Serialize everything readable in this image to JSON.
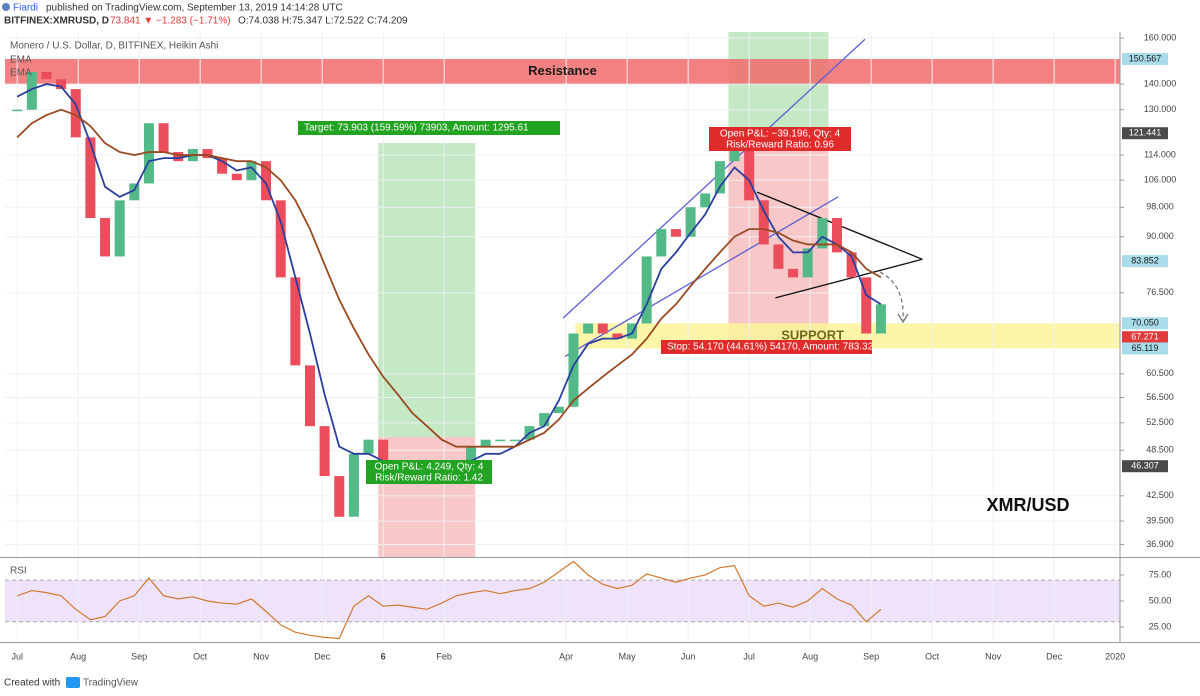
{
  "header": {
    "author": "Fiardi",
    "published": "published on TradingView.com, September 13, 2019 14:14:28 UTC",
    "symbol": "BITFINEX:XMRUSD, D",
    "change": "73.841 ▼ −1.283 (−1.71%)",
    "ohlc": "O:74.038 H:75.347 L:72.522 C:74.209"
  },
  "footer": {
    "created": "Created with",
    "brand": "TradingView"
  },
  "chart_data": {
    "type": "candlestick",
    "subtitle": "Monero / U.S. Dollar, D, BITFINEX, Heikin Ashi",
    "watermark": "XMR/USD",
    "log": true,
    "grid": true,
    "xlim": [
      -0.2,
      18.08
    ],
    "xticks": [
      {
        "value": 0,
        "label": "Jul"
      },
      {
        "value": 1,
        "label": "Aug"
      },
      {
        "value": 2,
        "label": "Sep"
      },
      {
        "value": 3,
        "label": "Oct"
      },
      {
        "value": 4,
        "label": "Nov"
      },
      {
        "value": 5,
        "label": "Dec"
      },
      6,
      {
        "value": 7,
        "label": "Feb"
      },
      {
        "value": 9,
        "label": "Apr"
      },
      {
        "value": 10,
        "label": "May"
      },
      {
        "value": 11,
        "label": "Jun"
      },
      {
        "value": 12,
        "label": "Jul"
      },
      {
        "value": 13,
        "label": "Aug"
      },
      {
        "value": 14,
        "label": "Sep"
      },
      {
        "value": 15,
        "label": "Oct"
      },
      {
        "value": 16,
        "label": "Nov"
      },
      {
        "value": 17,
        "label": "Dec"
      },
      {
        "value": 18,
        "label": "2020"
      }
    ],
    "ylim": [
      35.6,
      162.8
    ],
    "yticks": [
      {
        "value": 160,
        "label": "160.000"
      },
      {
        "value": 140,
        "label": "140.000"
      },
      {
        "value": 130,
        "label": "130.000"
      },
      {
        "value": 114,
        "label": "114.000"
      },
      {
        "value": 106,
        "label": "106.000"
      },
      {
        "value": 98,
        "label": "98.000"
      },
      {
        "value": 90,
        "label": "90.000"
      },
      {
        "value": 76.5,
        "label": "76.500"
      },
      {
        "value": 60.5,
        "label": "60.500"
      },
      {
        "value": 56.5,
        "label": "56.500"
      },
      {
        "value": 52.5,
        "label": "52.500"
      },
      {
        "value": 48.5,
        "label": "48.500"
      },
      {
        "value": 42.5,
        "label": "42.500"
      },
      {
        "value": 39.5,
        "label": "39.500"
      },
      {
        "value": 36.9,
        "label": "36.900"
      }
    ],
    "up_color": "#53b987",
    "down_color": "#eb4d5c",
    "x": [
      0,
      0.24,
      0.48,
      0.72,
      0.96,
      1.2,
      1.44,
      1.68,
      1.92,
      2.16,
      2.4,
      2.64,
      2.88,
      3.12,
      3.36,
      3.6,
      3.84,
      4.08,
      4.32,
      4.56,
      4.8,
      5.04,
      5.28,
      5.52,
      5.76,
      6,
      6.24,
      6.48,
      6.72,
      6.96,
      7.2,
      7.44,
      7.68,
      7.92,
      8.16,
      8.4,
      8.64,
      8.88,
      9.12,
      9.36,
      9.6,
      9.84,
      10.08,
      10.32,
      10.56,
      10.8,
      11.04,
      11.28,
      11.52,
      11.76,
      12,
      12.24,
      12.48,
      12.72,
      12.96,
      13.2,
      13.44,
      13.68,
      13.92,
      14.16
    ],
    "values": [
      130,
      145,
      142,
      138,
      120,
      95,
      85,
      100,
      105,
      125,
      115,
      112,
      116,
      113,
      108,
      106,
      112,
      100,
      80,
      62,
      52,
      45,
      40,
      48,
      50,
      47,
      46,
      45,
      44,
      46,
      47,
      49,
      50,
      50,
      50,
      52,
      54,
      55,
      68,
      70,
      68,
      67,
      70,
      85,
      92,
      90,
      98,
      102,
      112,
      116,
      100,
      88,
      82,
      80,
      87,
      95,
      86,
      80,
      68,
      74
    ],
    "series": [
      {
        "name": "EMA",
        "color": "#2b3f9e",
        "values": [
          135,
          138,
          140,
          139,
          132,
          118,
          104,
          101,
          103,
          112,
          113,
          113,
          114,
          114,
          112,
          109,
          110,
          105,
          94,
          80,
          68,
          57,
          49,
          48,
          48,
          47,
          46,
          46,
          45,
          45,
          46,
          47,
          48,
          48,
          49,
          51,
          52,
          56,
          62,
          66,
          67,
          67,
          68,
          74,
          82,
          86,
          91,
          96,
          104,
          110,
          106,
          97,
          90,
          86,
          86,
          90,
          88,
          85,
          76,
          74
        ]
      },
      {
        "name": "EMA",
        "color": "#9a4a22",
        "values": [
          120,
          125,
          128,
          130,
          128,
          124,
          118,
          115,
          114,
          115,
          115,
          114,
          114,
          114,
          113,
          112,
          112,
          110,
          106,
          100,
          92,
          83,
          75,
          69,
          64,
          60,
          57,
          54,
          52,
          50,
          49,
          49,
          49,
          49,
          49,
          50,
          51,
          53,
          56,
          58,
          60,
          62,
          64,
          67,
          71,
          74,
          78,
          82,
          86,
          90,
          92,
          92,
          91,
          89,
          88,
          88,
          88,
          86,
          82,
          80
        ]
      }
    ],
    "bands": [
      {
        "label": "Resistance",
        "range": [
          140,
          150.567
        ],
        "x_from": -0.2,
        "color": "#f26b6b",
        "text_color": "#1a1a1a"
      },
      {
        "label": "SUPPORT",
        "range": [
          65.119,
          70.05
        ],
        "x_from": 9.15,
        "color": "#fdf59a",
        "text_color": "#6b6b1a"
      }
    ],
    "zones": [
      {
        "x": [
          5.92,
          7.51
        ],
        "y": [
          50.4,
          118
        ],
        "color": "#b5e3b5"
      },
      {
        "x": [
          5.92,
          7.51
        ],
        "y": [
          35.6,
          50.4
        ],
        "color": "#f6b9b9"
      },
      {
        "x": [
          11.66,
          13.3
        ],
        "y": [
          115.7,
          162.8
        ],
        "color": "#b5e3b5"
      },
      {
        "x": [
          11.66,
          13.3
        ],
        "y": [
          65.8,
          115.7
        ],
        "color": "#f6b9b9"
      }
    ],
    "trend_lines": [
      {
        "x": [
          8.95,
          13.9
        ],
        "y": [
          71.1,
          159.4
        ],
        "color": "#5b5fd6"
      },
      {
        "x": [
          8.98,
          13.46
        ],
        "y": [
          63.6,
          101.0
        ],
        "color": "#5b5fd6"
      },
      {
        "x": [
          12.13,
          14.84
        ],
        "y": [
          102.4,
          84.3
        ],
        "color": "#111111"
      },
      {
        "x": [
          12.43,
          14.84
        ],
        "y": [
          75.4,
          84.3
        ],
        "color": "#111111"
      }
    ],
    "price_labels": [
      {
        "value": 150.567,
        "label": "150.567",
        "color": "#a9dcea",
        "text_color": "#1a1a1a"
      },
      {
        "value": 121.441,
        "label": "121.441",
        "color": "#4a4a4a",
        "text_color": "#ffffff"
      },
      {
        "value": 83.852,
        "label": "83.852",
        "color": "#a9dcea",
        "text_color": "#1a1a1a"
      },
      {
        "value": 70.05,
        "label": "70.050",
        "color": "#a9dcea",
        "text_color": "#1a1a1a"
      },
      {
        "value": 67.271,
        "label": "67.271",
        "color": "#e03a3a",
        "text_color": "#ffffff"
      },
      {
        "value": 65.119,
        "label": "65.119",
        "color": "#a9dcea",
        "text_color": "#1a1a1a"
      },
      {
        "value": 46.307,
        "label": "46.307",
        "color": "#4a4a4a",
        "text_color": "#ffffff"
      }
    ],
    "annotations": {
      "target": "Target: 73.903 (159.59%) 73903, Amount: 1295.61",
      "stop": "Stop: 54.170 (44.61%) 54170, Amount: 783.32",
      "long_pnl": "Open P&L: 4.249, Qty: 4",
      "long_rr": "Risk/Reward Ratio: 1.42",
      "short_pnl": "Open P&L: −39.196, Qty: 4",
      "short_rr": "Risk/Reward Ratio: 0.96"
    },
    "rsi": {
      "name": "RSI",
      "color": "#d0782e",
      "band": [
        30,
        70
      ],
      "band_color": "#efe3fb",
      "ylim": [
        12.5,
        91.3
      ],
      "yticks": [
        {
          "value": 75,
          "label": "75.00"
        },
        {
          "value": 50,
          "label": "50.00"
        },
        {
          "value": 25,
          "label": "25.00"
        }
      ],
      "values": [
        55,
        60,
        58,
        55,
        42,
        32,
        35,
        50,
        55,
        72,
        55,
        52,
        54,
        50,
        48,
        47,
        52,
        40,
        27,
        20,
        17,
        15,
        14,
        45,
        55,
        45,
        46,
        44,
        42,
        48,
        55,
        58,
        60,
        57,
        60,
        62,
        68,
        78,
        88,
        75,
        66,
        62,
        65,
        76,
        72,
        68,
        72,
        75,
        82,
        84,
        55,
        45,
        48,
        44,
        50,
        62,
        52,
        46,
        30,
        42
      ]
    }
  }
}
